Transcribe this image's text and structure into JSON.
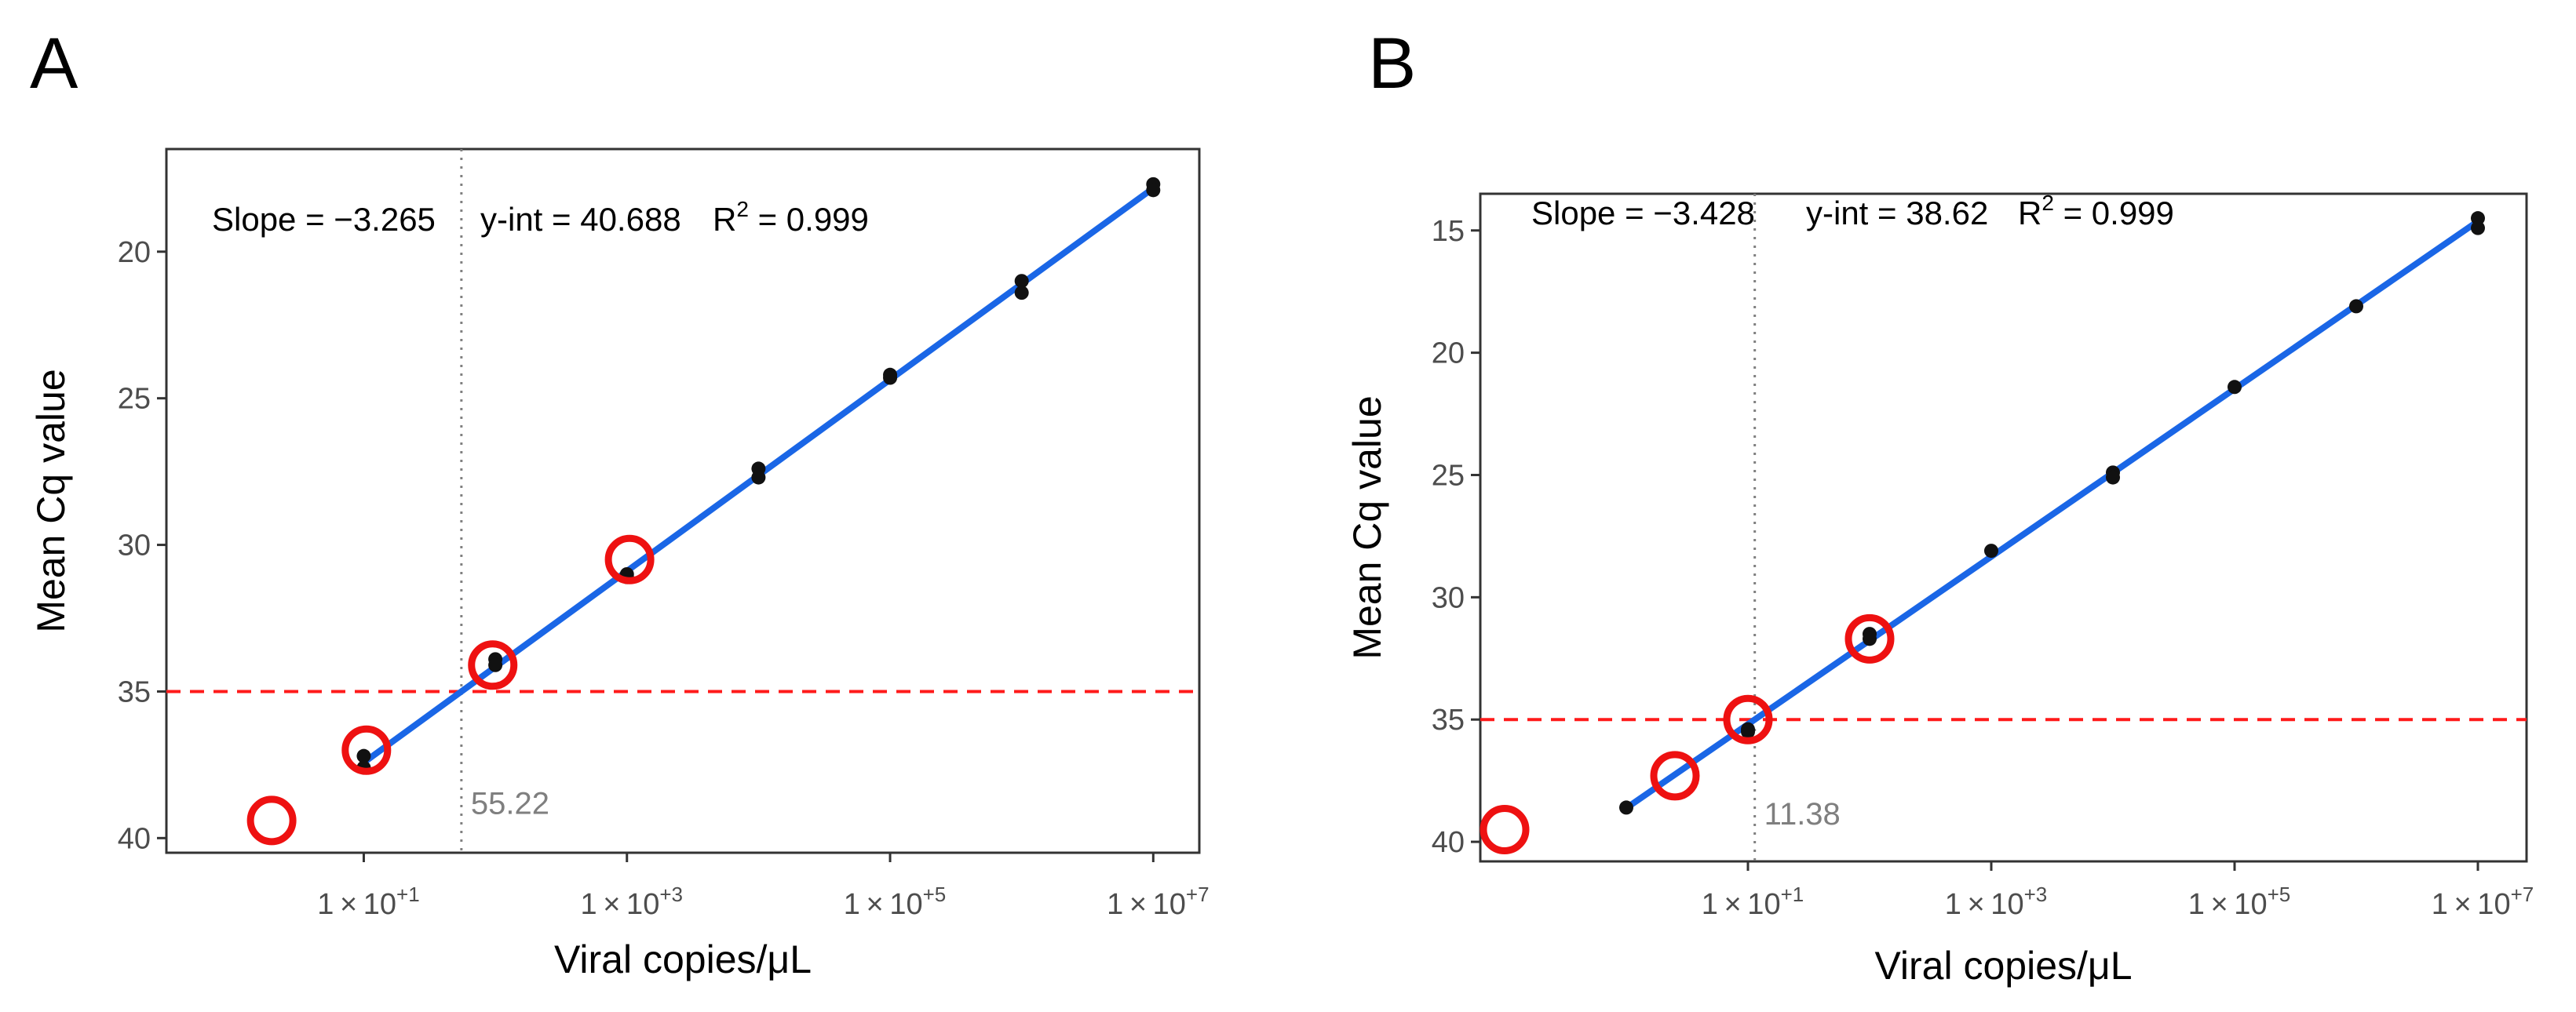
{
  "chart_data": [
    {
      "type": "scatter",
      "panel": "A",
      "xscale": "log10",
      "yreversed": true,
      "xlabel": "Viral copies/μL",
      "ylabel": "Mean Cq value",
      "xlim_log10": [
        -0.5,
        7.35
      ],
      "ylim": [
        16.5,
        40.5
      ],
      "x_ticks_log10": [
        1,
        3,
        5,
        7
      ],
      "x_tick_labels": [
        {
          "base": "1 × 10",
          "exp": "+1"
        },
        {
          "base": "1 × 10",
          "exp": "+3"
        },
        {
          "base": "1 × 10",
          "exp": "+5"
        },
        {
          "base": "1 × 10",
          "exp": "+7"
        }
      ],
      "y_ticks": [
        20,
        25,
        30,
        35,
        40
      ],
      "y_tick_labels": [
        "20",
        "25",
        "30",
        "35",
        "40"
      ],
      "annotation": {
        "slope_label": "Slope = −3.265",
        "yint_label": "y-int = 40.688",
        "r2_label": "R",
        "r2_exp": "2",
        "r2_value": " =  0.999"
      },
      "fit": {
        "slope": -3.265,
        "intercept": 40.688,
        "from_log10": 1,
        "to_log10": 7
      },
      "threshold_cq": 35,
      "lod": {
        "x_log10": 1.742,
        "label": "55.22"
      },
      "points": [
        {
          "x_log10": 1,
          "y": 37.2
        },
        {
          "x_log10": 1,
          "y": 37.6
        },
        {
          "x_log10": 2,
          "y": 33.9
        },
        {
          "x_log10": 2,
          "y": 34.1
        },
        {
          "x_log10": 3,
          "y": 31.0
        },
        {
          "x_log10": 3,
          "y": 31.1
        },
        {
          "x_log10": 4,
          "y": 27.4
        },
        {
          "x_log10": 4,
          "y": 27.7
        },
        {
          "x_log10": 5,
          "y": 24.2
        },
        {
          "x_log10": 5,
          "y": 24.3
        },
        {
          "x_log10": 6,
          "y": 21.0
        },
        {
          "x_log10": 6,
          "y": 21.4
        },
        {
          "x_log10": 7,
          "y": 17.7
        },
        {
          "x_log10": 7,
          "y": 17.9
        }
      ],
      "highlighted": [
        {
          "x_log10": 0.3,
          "y": 39.4
        },
        {
          "x_log10": 1.02,
          "y": 37.0
        },
        {
          "x_log10": 1.98,
          "y": 34.1
        },
        {
          "x_log10": 3.02,
          "y": 30.5
        }
      ],
      "colors": {
        "fit": "#1a66e6",
        "threshold": "#ff1a1a",
        "highlight": "#ee1111",
        "point": "#111111",
        "lod": "#808080"
      }
    },
    {
      "type": "scatter",
      "panel": "B",
      "xscale": "log10",
      "yreversed": true,
      "xlabel": "Viral copies/μL",
      "ylabel": "Mean Cq value",
      "xlim_log10": [
        -1.2,
        7.4
      ],
      "ylim": [
        13.5,
        40.8
      ],
      "x_ticks_log10": [
        1,
        3,
        5,
        7
      ],
      "x_tick_labels": [
        {
          "base": "1 × 10",
          "exp": "+1"
        },
        {
          "base": "1 × 10",
          "exp": "+3"
        },
        {
          "base": "1 × 10",
          "exp": "+5"
        },
        {
          "base": "1 × 10",
          "exp": "+7"
        }
      ],
      "y_ticks": [
        15,
        20,
        25,
        30,
        35,
        40
      ],
      "y_tick_labels": [
        "15",
        "20",
        "25",
        "30",
        "35",
        "40"
      ],
      "annotation": {
        "slope_label": "Slope = −3.428",
        "yint_label": "y-int = 38.62",
        "r2_label": "R",
        "r2_exp": "2",
        "r2_value": " =  0.999"
      },
      "fit": {
        "slope": -3.428,
        "intercept": 38.62,
        "from_log10": 0,
        "to_log10": 7
      },
      "threshold_cq": 35,
      "lod": {
        "x_log10": 1.056,
        "label": "11.38"
      },
      "points": [
        {
          "x_log10": 0,
          "y": 38.6
        },
        {
          "x_log10": 1,
          "y": 35.4
        },
        {
          "x_log10": 1,
          "y": 35.5
        },
        {
          "x_log10": 2,
          "y": 31.5
        },
        {
          "x_log10": 2,
          "y": 31.7
        },
        {
          "x_log10": 3,
          "y": 28.1
        },
        {
          "x_log10": 4,
          "y": 24.9
        },
        {
          "x_log10": 4,
          "y": 25.1
        },
        {
          "x_log10": 5,
          "y": 21.4
        },
        {
          "x_log10": 6,
          "y": 18.1
        },
        {
          "x_log10": 7,
          "y": 14.5
        },
        {
          "x_log10": 7,
          "y": 14.9
        }
      ],
      "highlighted": [
        {
          "x_log10": -1.0,
          "y": 39.5
        },
        {
          "x_log10": 0.4,
          "y": 37.3
        },
        {
          "x_log10": 1.0,
          "y": 35.0
        },
        {
          "x_log10": 2.0,
          "y": 31.7
        }
      ],
      "colors": {
        "fit": "#1a66e6",
        "threshold": "#ff1a1a",
        "highlight": "#ee1111",
        "point": "#111111",
        "lod": "#808080"
      }
    }
  ]
}
